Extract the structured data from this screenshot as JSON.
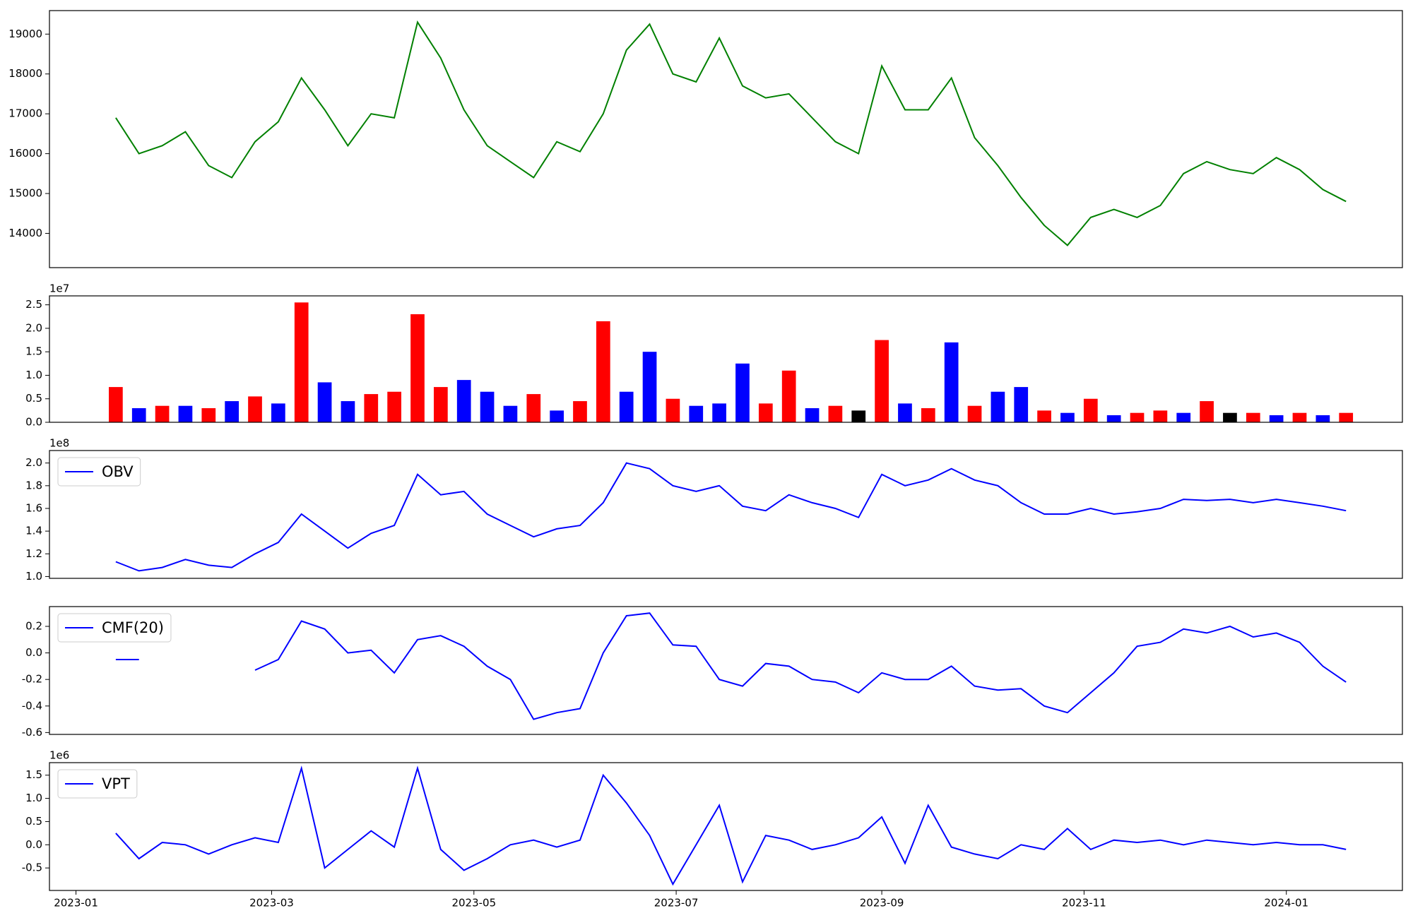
{
  "chart_data": [
    {
      "type": "line",
      "xlim": [
        "2022-12-24",
        "2024-02-05"
      ],
      "ylim": [
        13140,
        19590
      ],
      "yticks": [
        14000,
        15000,
        16000,
        17000,
        18000,
        19000
      ],
      "x": [
        "2023-01-13",
        "2023-01-20",
        "2023-01-27",
        "2023-02-03",
        "2023-02-10",
        "2023-02-17",
        "2023-02-24",
        "2023-03-03",
        "2023-03-10",
        "2023-03-17",
        "2023-03-24",
        "2023-03-31",
        "2023-04-07",
        "2023-04-14",
        "2023-04-21",
        "2023-04-28",
        "2023-05-05",
        "2023-05-12",
        "2023-05-19",
        "2023-05-26",
        "2023-06-02",
        "2023-06-09",
        "2023-06-16",
        "2023-06-23",
        "2023-06-30",
        "2023-07-07",
        "2023-07-14",
        "2023-07-21",
        "2023-07-28",
        "2023-08-04",
        "2023-08-11",
        "2023-08-18",
        "2023-08-25",
        "2023-09-01",
        "2023-09-08",
        "2023-09-15",
        "2023-09-22",
        "2023-09-29",
        "2023-10-06",
        "2023-10-13",
        "2023-10-20",
        "2023-10-27",
        "2023-11-03",
        "2023-11-10",
        "2023-11-17",
        "2023-11-24",
        "2023-12-01",
        "2023-12-08",
        "2023-12-15",
        "2023-12-22",
        "2023-12-29",
        "2024-01-05",
        "2024-01-12",
        "2024-01-19"
      ],
      "series": [
        {
          "color": "#008000",
          "values": [
            16900,
            16000,
            16200,
            16550,
            15700,
            15400,
            16300,
            16800,
            17900,
            17100,
            16200,
            17000,
            16900,
            19300,
            18400,
            17100,
            16200,
            15800,
            15400,
            16300,
            16050,
            17000,
            18600,
            19250,
            18000,
            17800,
            18900,
            17700,
            17400,
            17500,
            16900,
            16300,
            16000,
            18200,
            17100,
            17100,
            17900,
            16400,
            15700,
            14900,
            14200,
            13700,
            14400,
            14600,
            14400,
            14700,
            15500,
            15800,
            15600,
            15500,
            15900,
            15600,
            15100,
            14800
          ]
        }
      ]
    },
    {
      "type": "bar",
      "offset_text": "1e7",
      "xlim": [
        "2022-12-24",
        "2024-02-05"
      ],
      "ylim": [
        0,
        2.69
      ],
      "yticks": [
        {
          "value": 0,
          "label": "0.0"
        },
        0.5,
        {
          "value": 1,
          "label": "1.0"
        },
        1.5,
        {
          "value": 2,
          "label": "2.0"
        },
        2.5
      ],
      "x": [
        "2023-01-13",
        "2023-01-20",
        "2023-01-27",
        "2023-02-03",
        "2023-02-10",
        "2023-02-17",
        "2023-02-24",
        "2023-03-03",
        "2023-03-10",
        "2023-03-17",
        "2023-03-24",
        "2023-03-31",
        "2023-04-07",
        "2023-04-14",
        "2023-04-21",
        "2023-04-28",
        "2023-05-05",
        "2023-05-12",
        "2023-05-19",
        "2023-05-26",
        "2023-06-02",
        "2023-06-09",
        "2023-06-16",
        "2023-06-23",
        "2023-06-30",
        "2023-07-07",
        "2023-07-14",
        "2023-07-21",
        "2023-07-28",
        "2023-08-04",
        "2023-08-11",
        "2023-08-18",
        "2023-08-25",
        "2023-09-01",
        "2023-09-08",
        "2023-09-15",
        "2023-09-22",
        "2023-09-29",
        "2023-10-06",
        "2023-10-13",
        "2023-10-20",
        "2023-10-27",
        "2023-11-03",
        "2023-11-10",
        "2023-11-17",
        "2023-11-24",
        "2023-12-01",
        "2023-12-08",
        "2023-12-15",
        "2023-12-22",
        "2023-12-29",
        "2024-01-05",
        "2024-01-12",
        "2024-01-19"
      ],
      "values": [
        0.75,
        0.3,
        0.35,
        0.35,
        0.3,
        0.45,
        0.55,
        0.4,
        2.55,
        0.85,
        0.45,
        0.6,
        0.65,
        2.3,
        0.75,
        0.9,
        0.65,
        0.35,
        0.6,
        0.25,
        0.45,
        2.15,
        0.65,
        1.5,
        0.5,
        0.35,
        0.4,
        1.25,
        0.4,
        1.1,
        0.3,
        0.35,
        0.25,
        1.75,
        0.4,
        0.3,
        1.7,
        0.35,
        0.65,
        0.75,
        0.25,
        0.2,
        0.5,
        0.15,
        0.2,
        0.25,
        0.2,
        0.45,
        0.2,
        0.2,
        0.15,
        0.2,
        0.15,
        0.2
      ],
      "colors": [
        "red",
        "blue",
        "red",
        "blue",
        "red",
        "blue",
        "red",
        "blue",
        "red",
        "blue",
        "blue",
        "red",
        "red",
        "red",
        "red",
        "blue",
        "blue",
        "blue",
        "red",
        "blue",
        "red",
        "red",
        "blue",
        "blue",
        "red",
        "blue",
        "blue",
        "blue",
        "red",
        "red",
        "blue",
        "red",
        "black",
        "red",
        "blue",
        "red",
        "blue",
        "red",
        "blue",
        "blue",
        "red",
        "blue",
        "red",
        "blue",
        "red",
        "red",
        "blue",
        "red",
        "black",
        "red",
        "blue",
        "red",
        "blue",
        "red"
      ]
    },
    {
      "type": "line",
      "offset_text": "1e8",
      "legend": "upper left",
      "xlim": [
        "2022-12-24",
        "2024-02-05"
      ],
      "ylim": [
        0.984,
        2.11
      ],
      "yticks": [
        {
          "value": 1,
          "label": "1.0"
        },
        1.2,
        1.4,
        1.6,
        1.8,
        {
          "value": 2,
          "label": "2.0"
        }
      ],
      "x": [
        "2023-01-13",
        "2023-01-20",
        "2023-01-27",
        "2023-02-03",
        "2023-02-10",
        "2023-02-17",
        "2023-02-24",
        "2023-03-03",
        "2023-03-10",
        "2023-03-17",
        "2023-03-24",
        "2023-03-31",
        "2023-04-07",
        "2023-04-14",
        "2023-04-21",
        "2023-04-28",
        "2023-05-05",
        "2023-05-12",
        "2023-05-19",
        "2023-05-26",
        "2023-06-02",
        "2023-06-09",
        "2023-06-16",
        "2023-06-23",
        "2023-06-30",
        "2023-07-07",
        "2023-07-14",
        "2023-07-21",
        "2023-07-28",
        "2023-08-04",
        "2023-08-11",
        "2023-08-18",
        "2023-08-25",
        "2023-09-01",
        "2023-09-08",
        "2023-09-15",
        "2023-09-22",
        "2023-09-29",
        "2023-10-06",
        "2023-10-13",
        "2023-10-20",
        "2023-10-27",
        "2023-11-03",
        "2023-11-10",
        "2023-11-17",
        "2023-11-24",
        "2023-12-01",
        "2023-12-08",
        "2023-12-15",
        "2023-12-22",
        "2023-12-29",
        "2024-01-05",
        "2024-01-12",
        "2024-01-19"
      ],
      "series": [
        {
          "name": "OBV",
          "color": "#0000ff",
          "values": [
            1.13,
            1.05,
            1.08,
            1.15,
            1.1,
            1.08,
            1.2,
            1.3,
            1.55,
            1.4,
            1.25,
            1.38,
            1.45,
            1.9,
            1.72,
            1.75,
            1.55,
            1.45,
            1.35,
            1.42,
            1.45,
            1.65,
            2.0,
            1.95,
            1.8,
            1.75,
            1.8,
            1.62,
            1.58,
            1.72,
            1.65,
            1.6,
            1.52,
            1.9,
            1.8,
            1.85,
            1.95,
            1.85,
            1.8,
            1.65,
            1.55,
            1.55,
            1.6,
            1.55,
            1.57,
            1.6,
            1.68,
            1.67,
            1.68,
            1.65,
            1.68,
            1.65,
            1.62,
            1.58
          ]
        }
      ]
    },
    {
      "type": "line",
      "legend": "upper left",
      "xlim": [
        "2022-12-24",
        "2024-02-05"
      ],
      "ylim": [
        -0.614,
        0.349
      ],
      "yticks": [
        -0.6,
        -0.4,
        -0.2,
        {
          "value": 0,
          "label": "0.0"
        },
        0.2
      ],
      "x": [
        "2023-01-13",
        "2023-01-20",
        "2023-01-27",
        "2023-02-03",
        "2023-02-10",
        "2023-02-17",
        "2023-02-24",
        "2023-03-03",
        "2023-03-10",
        "2023-03-17",
        "2023-03-24",
        "2023-03-31",
        "2023-04-07",
        "2023-04-14",
        "2023-04-21",
        "2023-04-28",
        "2023-05-05",
        "2023-05-12",
        "2023-05-19",
        "2023-05-26",
        "2023-06-02",
        "2023-06-09",
        "2023-06-16",
        "2023-06-23",
        "2023-06-30",
        "2023-07-07",
        "2023-07-14",
        "2023-07-21",
        "2023-07-28",
        "2023-08-04",
        "2023-08-11",
        "2023-08-18",
        "2023-08-25",
        "2023-09-01",
        "2023-09-08",
        "2023-09-15",
        "2023-09-22",
        "2023-09-29",
        "2023-10-06",
        "2023-10-13",
        "2023-10-20",
        "2023-10-27",
        "2023-11-03",
        "2023-11-10",
        "2023-11-17",
        "2023-11-24",
        "2023-12-01",
        "2023-12-08",
        "2023-12-15",
        "2023-12-22",
        "2023-12-29",
        "2024-01-05",
        "2024-01-12",
        "2024-01-19"
      ],
      "series": [
        {
          "name": "CMF(20)",
          "color": "#0000ff",
          "values": [
            -0.05,
            -0.05,
            null,
            null,
            null,
            null,
            -0.13,
            -0.05,
            0.24,
            0.18,
            0.0,
            0.02,
            -0.15,
            0.1,
            0.13,
            0.05,
            -0.1,
            -0.2,
            -0.5,
            -0.45,
            -0.42,
            0.0,
            0.28,
            0.3,
            0.06,
            0.05,
            -0.2,
            -0.25,
            -0.08,
            -0.1,
            -0.2,
            -0.22,
            -0.3,
            -0.15,
            -0.2,
            -0.2,
            -0.1,
            -0.25,
            -0.28,
            -0.27,
            -0.4,
            -0.45,
            -0.3,
            -0.15,
            0.05,
            0.08,
            0.18,
            0.15,
            0.2,
            0.12,
            0.15,
            0.08,
            -0.1,
            -0.22
          ]
        }
      ]
    },
    {
      "type": "line",
      "offset_text": "1e6",
      "legend": "upper left",
      "xlim": [
        "2022-12-24",
        "2024-02-05"
      ],
      "ylim": [
        -0.985,
        1.77
      ],
      "yticks": [
        -0.5,
        {
          "value": 0,
          "label": "0.0"
        },
        0.5,
        {
          "value": 1,
          "label": "1.0"
        },
        1.5
      ],
      "xticks": [
        {
          "value": "2023-01-01",
          "label": "2023-01"
        },
        {
          "value": "2023-03-01",
          "label": "2023-03"
        },
        {
          "value": "2023-05-01",
          "label": "2023-05"
        },
        {
          "value": "2023-07-01",
          "label": "2023-07"
        },
        {
          "value": "2023-09-01",
          "label": "2023-09"
        },
        {
          "value": "2023-11-01",
          "label": "2023-11"
        },
        {
          "value": "2024-01-01",
          "label": "2024-01"
        }
      ],
      "x": [
        "2023-01-13",
        "2023-01-20",
        "2023-01-27",
        "2023-02-03",
        "2023-02-10",
        "2023-02-17",
        "2023-02-24",
        "2023-03-03",
        "2023-03-10",
        "2023-03-17",
        "2023-03-24",
        "2023-03-31",
        "2023-04-07",
        "2023-04-14",
        "2023-04-21",
        "2023-04-28",
        "2023-05-05",
        "2023-05-12",
        "2023-05-19",
        "2023-05-26",
        "2023-06-02",
        "2023-06-09",
        "2023-06-16",
        "2023-06-23",
        "2023-06-30",
        "2023-07-07",
        "2023-07-14",
        "2023-07-21",
        "2023-07-28",
        "2023-08-04",
        "2023-08-11",
        "2023-08-18",
        "2023-08-25",
        "2023-09-01",
        "2023-09-08",
        "2023-09-15",
        "2023-09-22",
        "2023-09-29",
        "2023-10-06",
        "2023-10-13",
        "2023-10-20",
        "2023-10-27",
        "2023-11-03",
        "2023-11-10",
        "2023-11-17",
        "2023-11-24",
        "2023-12-01",
        "2023-12-08",
        "2023-12-15",
        "2023-12-22",
        "2023-12-29",
        "2024-01-05",
        "2024-01-12",
        "2024-01-19"
      ],
      "series": [
        {
          "name": "VPT",
          "color": "#0000ff",
          "values": [
            0.25,
            -0.3,
            0.05,
            0.0,
            -0.2,
            0.0,
            0.15,
            0.05,
            1.65,
            -0.5,
            -0.1,
            0.3,
            -0.05,
            1.65,
            -0.1,
            -0.55,
            -0.3,
            0.0,
            0.1,
            -0.05,
            0.1,
            1.5,
            0.9,
            0.2,
            -0.85,
            0.0,
            0.85,
            -0.8,
            0.2,
            0.1,
            -0.1,
            0.0,
            0.15,
            0.6,
            -0.4,
            0.85,
            -0.05,
            -0.2,
            -0.3,
            0.0,
            -0.1,
            0.35,
            -0.1,
            0.1,
            0.05,
            0.1,
            0.0,
            0.1,
            0.05,
            0.0,
            0.05,
            0.0,
            0.0,
            -0.1
          ]
        }
      ]
    }
  ]
}
